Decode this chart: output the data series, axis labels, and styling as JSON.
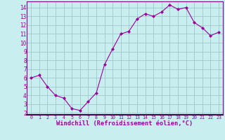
{
  "x": [
    0,
    1,
    2,
    3,
    4,
    5,
    6,
    7,
    8,
    9,
    10,
    11,
    12,
    13,
    14,
    15,
    16,
    17,
    18,
    19,
    20,
    21,
    22,
    23
  ],
  "y": [
    6.0,
    6.3,
    5.0,
    4.0,
    3.7,
    2.5,
    2.3,
    3.3,
    4.3,
    7.5,
    9.3,
    11.0,
    11.3,
    12.7,
    13.3,
    13.0,
    13.5,
    14.3,
    13.8,
    14.0,
    12.3,
    11.7,
    10.8,
    11.2
  ],
  "xlim": [
    -0.5,
    23.5
  ],
  "ylim": [
    1.8,
    14.7
  ],
  "yticks": [
    2,
    3,
    4,
    5,
    6,
    7,
    8,
    9,
    10,
    11,
    12,
    13,
    14
  ],
  "xticks": [
    0,
    1,
    2,
    3,
    4,
    5,
    6,
    7,
    8,
    9,
    10,
    11,
    12,
    13,
    14,
    15,
    16,
    17,
    18,
    19,
    20,
    21,
    22,
    23
  ],
  "xlabel": "Windchill (Refroidissement éolien,°C)",
  "line_color": "#990099",
  "marker": "D",
  "marker_size": 2.0,
  "bg_color": "#c8eef0",
  "grid_color": "#a0c8cc",
  "spine_color": "#880088"
}
